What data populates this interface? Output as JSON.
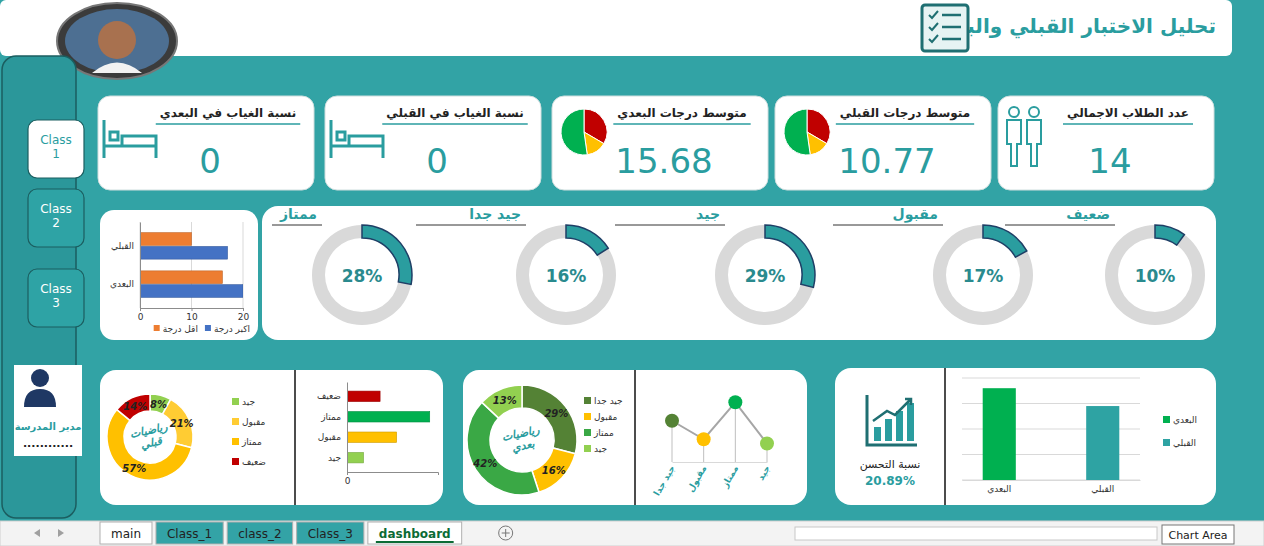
{
  "header": {
    "title": "تحليل الاختبار القبلي والبعدي"
  },
  "kpis": [
    {
      "label": "عدد الطلاب الاجمالي",
      "value": 14
    },
    {
      "label": "متوسط درجات القبلي",
      "value": 10.77
    },
    {
      "label": "متوسط درجات البعدي",
      "value": 15.68
    },
    {
      "label": "نسبة الغياب في القبلي",
      "value": 0
    },
    {
      "label": "نسبة الغياب في البعدي",
      "value": 0
    }
  ],
  "sidebar": {
    "buttons": [
      "Class 1",
      "Class 2",
      "Class 3"
    ],
    "principal": "مدير المدرسة",
    "signature": "............"
  },
  "improvement": {
    "label": "نسبة التحسن",
    "value": "20.89%"
  },
  "tabs": [
    "main",
    "Class_1",
    "class_2",
    "Class_3",
    "dashboard"
  ],
  "tooltip": "Chart Area",
  "chart_data": [
    {
      "type": "gauge",
      "categories": [
        "ضعيف",
        "مقبول",
        "جيد",
        "جيد جدا",
        "ممتاز"
      ],
      "values": [
        10,
        17,
        29,
        16,
        28
      ],
      "value_labels": [
        "10%",
        "17%",
        "29%",
        "16%",
        "28%"
      ],
      "ylim": [
        0,
        100
      ],
      "color": "#2a9d9f",
      "data_labels": true
    },
    {
      "type": "bar",
      "orientation": "horizontal",
      "categories": [
        "القبلي",
        "البعدي"
      ],
      "series": [
        {
          "name": "اكبر درجة",
          "color": "#4472c4",
          "values": [
            17,
            20
          ]
        },
        {
          "name": "اقل درجة",
          "color": "#ed7d31",
          "values": [
            10,
            16
          ]
        }
      ],
      "xlim": [
        0,
        20
      ],
      "xticks": [
        0,
        10,
        20
      ],
      "grid": true,
      "legend": "bottom"
    },
    {
      "type": "donut",
      "title": "رياضيات قبلي",
      "categories": [
        "جيد",
        "مقبول",
        "ممتاز",
        "ضعيف"
      ],
      "values": [
        8,
        21,
        57,
        14
      ],
      "value_labels": [
        "8%",
        "21%",
        "57%",
        "14%"
      ],
      "colors": [
        "#92d050",
        "#ffcc33",
        "#ffc000",
        "#c00000"
      ],
      "data_labels": true,
      "legend": "right"
    },
    {
      "type": "bar",
      "orientation": "horizontal",
      "categories": [
        "ضعيف",
        "ممتاز",
        "مقبول",
        "جيد"
      ],
      "values": [
        2,
        5,
        3,
        1
      ],
      "colors": [
        "#c00000",
        "#00b050",
        "#ffc000",
        "#92d050"
      ],
      "xlim": [
        0,
        5.5
      ],
      "xticks": [
        0
      ]
    },
    {
      "type": "donut",
      "title": "رياضيات بعدي",
      "categories": [
        "جيد جدا",
        "مقبول",
        "ممتاز",
        "جيد"
      ],
      "values": [
        29,
        16,
        42,
        13
      ],
      "value_labels": [
        "29%",
        "16%",
        "42%",
        "13%"
      ],
      "colors": [
        "#548235",
        "#ffc000",
        "#3aa845",
        "#92d050"
      ],
      "data_labels": true,
      "legend": "right"
    },
    {
      "type": "line",
      "categories": [
        "جيد جدا",
        "مقبول",
        "ممتاز",
        "جيد"
      ],
      "values": [
        29,
        16,
        42,
        13
      ],
      "color": "#a6a6a6",
      "colors": [
        "#548235",
        "#ffc000",
        "#00b050",
        "#92d050"
      ],
      "marker": "circle",
      "ylim": [
        0,
        45
      ],
      "tick_labels": "x"
    },
    {
      "type": "bar",
      "categories": [
        "البعدي",
        "القبلي"
      ],
      "values": [
        18,
        14.5
      ],
      "colors": [
        "#00b050",
        "#2ea3a3"
      ],
      "ylim": [
        0,
        20
      ],
      "yticks": [
        0,
        5,
        10,
        15,
        20
      ],
      "grid": true,
      "tick_labels": "x",
      "legend": "right"
    }
  ]
}
